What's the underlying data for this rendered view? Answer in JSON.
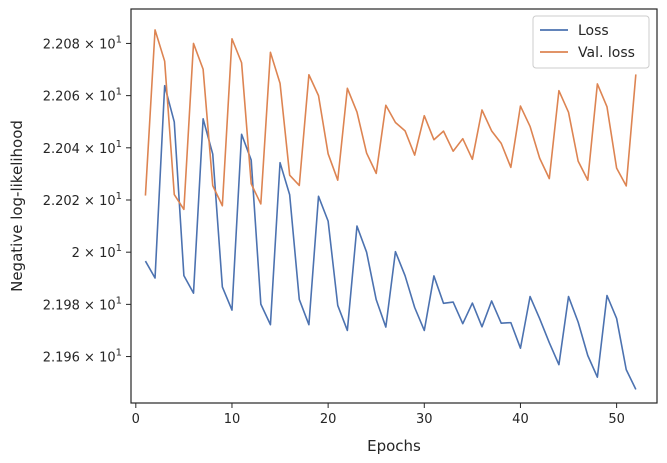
{
  "chart_data": {
    "type": "line",
    "xlabel": "Epochs",
    "ylabel": "Negative log-likelihood",
    "xlim": [
      -0.5,
      54.2
    ],
    "ylim": [
      21.9422,
      22.0932
    ],
    "x_ticks": [
      0,
      10,
      20,
      30,
      40,
      50
    ],
    "y_ticks": [
      {
        "value": 21.96,
        "mantissa": "2.196"
      },
      {
        "value": 21.98,
        "mantissa": "2.198"
      },
      {
        "value": 22.0,
        "mantissa": "2"
      },
      {
        "value": 22.02,
        "mantissa": "2.202"
      },
      {
        "value": 22.04,
        "mantissa": "2.204"
      },
      {
        "value": 22.06,
        "mantissa": "2.206"
      },
      {
        "value": 22.08,
        "mantissa": "2.208"
      }
    ],
    "tick_base": "10",
    "tick_exponent": "1",
    "grid": false,
    "legend": "top-right",
    "x": [
      1,
      2,
      3,
      4,
      5,
      6,
      7,
      8,
      9,
      10,
      11,
      12,
      13,
      14,
      15,
      16,
      17,
      18,
      19,
      20,
      21,
      22,
      23,
      24,
      25,
      26,
      27,
      28,
      29,
      30,
      31,
      32,
      33,
      34,
      35,
      36,
      37,
      38,
      39,
      40,
      41,
      42,
      43,
      44,
      45,
      46,
      47,
      48,
      49,
      50,
      51,
      52
    ],
    "series": [
      {
        "name": "Loss",
        "color": "#4c72b0",
        "values": [
          21.9966,
          21.9901,
          22.0638,
          22.0499,
          21.991,
          21.9843,
          22.0511,
          22.0376,
          21.9867,
          21.9778,
          22.0452,
          22.0353,
          21.9801,
          21.9722,
          22.0343,
          22.022,
          21.9819,
          21.9722,
          22.0214,
          22.0119,
          21.9796,
          21.97,
          22.01,
          22.0,
          21.9818,
          21.9713,
          22.0002,
          21.991,
          21.9788,
          21.97,
          21.9909,
          21.9804,
          21.9809,
          21.9726,
          21.9805,
          21.9714,
          21.9813,
          21.9728,
          21.973,
          21.9632,
          21.983,
          21.9745,
          21.9653,
          21.9569,
          21.983,
          21.9732,
          21.9604,
          21.9521,
          21.9834,
          21.9746,
          21.955,
          21.9474
        ]
      },
      {
        "name": "Val. loss",
        "color": "#dd8452",
        "values": [
          22.0217,
          22.0852,
          22.0732,
          22.0221,
          22.0164,
          22.08,
          22.0701,
          22.0255,
          22.0178,
          22.0818,
          22.0726,
          22.0262,
          22.0185,
          22.0766,
          22.0647,
          22.0295,
          22.0256,
          22.068,
          22.06,
          22.0377,
          22.0276,
          22.0628,
          22.0537,
          22.038,
          22.0302,
          22.0563,
          22.0497,
          22.0465,
          22.0372,
          22.0523,
          22.0431,
          22.0464,
          22.0387,
          22.0435,
          22.0356,
          22.0545,
          22.0465,
          22.0417,
          22.0325,
          22.056,
          22.0482,
          22.036,
          22.0282,
          22.0619,
          22.0536,
          22.0349,
          22.0276,
          22.0645,
          22.0557,
          22.0322,
          22.0254,
          22.0681
        ]
      }
    ]
  }
}
